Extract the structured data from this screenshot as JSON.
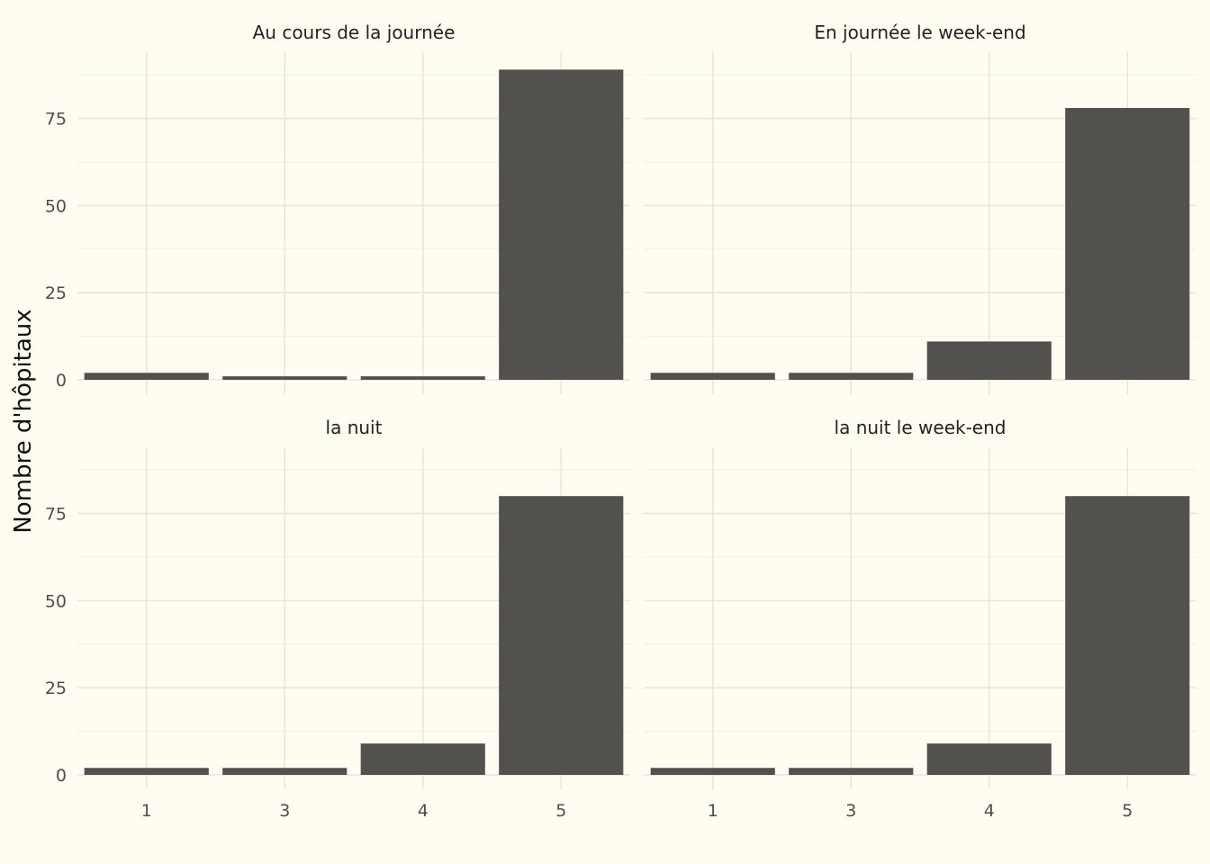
{
  "chart_data": {
    "type": "bar",
    "ylabel": "Nombre d'hôpitaux",
    "xlabel": "",
    "categories": [
      "1",
      "3",
      "4",
      "5"
    ],
    "ylim": [
      0,
      94
    ],
    "y_ticks": [
      0,
      25,
      50,
      75
    ],
    "bar_color": "#52514d",
    "grid": true,
    "layout": "facet 2x2",
    "panels": [
      {
        "title": "Au cours de la journée",
        "values": [
          2,
          1,
          1,
          89
        ]
      },
      {
        "title": "En journée le week-end",
        "values": [
          2,
          2,
          11,
          78
        ]
      },
      {
        "title": "la nuit",
        "values": [
          2,
          2,
          9,
          80
        ]
      },
      {
        "title": "la nuit le week-end",
        "values": [
          2,
          2,
          9,
          80
        ]
      }
    ]
  }
}
